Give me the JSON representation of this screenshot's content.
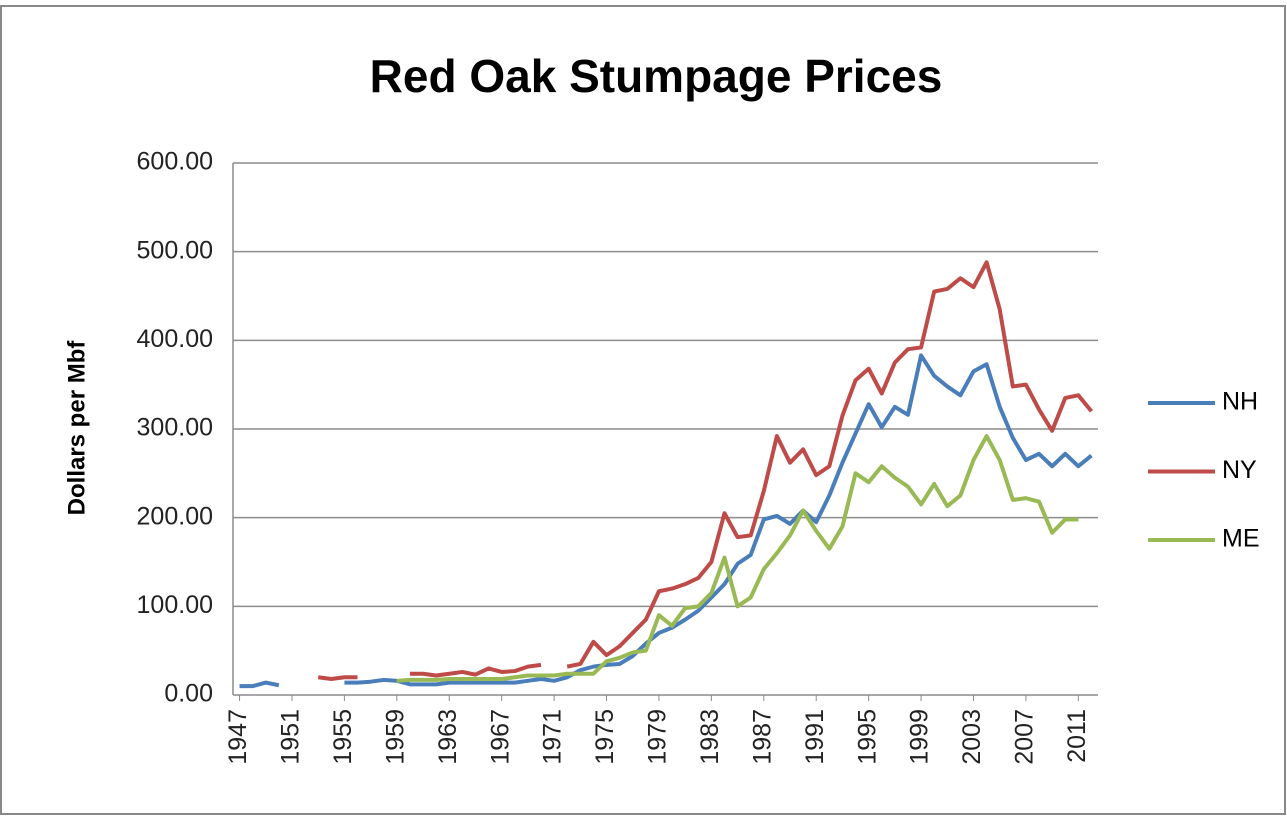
{
  "chart_data": {
    "type": "line",
    "title": "Red Oak Stumpage Prices",
    "ylabel": "Dollars per Mbf",
    "x": [
      1947,
      1948,
      1949,
      1950,
      1951,
      1952,
      1953,
      1954,
      1955,
      1956,
      1957,
      1958,
      1959,
      1960,
      1961,
      1962,
      1963,
      1964,
      1965,
      1966,
      1967,
      1968,
      1969,
      1970,
      1971,
      1972,
      1973,
      1974,
      1975,
      1976,
      1977,
      1978,
      1979,
      1980,
      1981,
      1982,
      1983,
      1984,
      1985,
      1986,
      1987,
      1988,
      1989,
      1990,
      1991,
      1992,
      1993,
      1994,
      1995,
      1996,
      1997,
      1998,
      1999,
      2000,
      2001,
      2002,
      2003,
      2004,
      2005,
      2006,
      2007,
      2008,
      2009,
      2010,
      2011,
      2012
    ],
    "series": [
      {
        "name": "NH",
        "color": "#4a7ebb",
        "values": [
          10,
          10,
          14,
          11,
          null,
          null,
          null,
          null,
          14,
          14,
          15,
          17,
          16,
          12,
          12,
          12,
          14,
          14,
          14,
          14,
          14,
          14,
          16,
          18,
          16,
          20,
          28,
          32,
          34,
          35,
          44,
          58,
          70,
          76,
          85,
          95,
          110,
          125,
          148,
          158,
          198,
          202,
          193,
          208,
          195,
          225,
          262,
          295,
          328,
          302,
          325,
          316,
          383,
          360,
          348,
          338,
          365,
          373,
          325,
          290,
          265,
          272,
          258,
          272,
          258,
          270
        ]
      },
      {
        "name": "NY",
        "color": "#be4b48",
        "values": [
          null,
          null,
          null,
          null,
          null,
          null,
          20,
          18,
          20,
          20,
          null,
          null,
          null,
          24,
          24,
          22,
          24,
          26,
          23,
          30,
          26,
          27,
          32,
          34,
          null,
          32,
          35,
          60,
          45,
          55,
          70,
          85,
          117,
          120,
          125,
          132,
          150,
          205,
          178,
          180,
          230,
          292,
          262,
          277,
          248,
          258,
          315,
          355,
          368,
          340,
          375,
          390,
          392,
          455,
          458,
          470,
          460,
          488,
          435,
          348,
          350,
          322,
          298,
          335,
          338,
          320
        ]
      },
      {
        "name": "ME",
        "color": "#98b954",
        "values": [
          null,
          null,
          null,
          null,
          null,
          null,
          null,
          null,
          null,
          null,
          null,
          null,
          16,
          17,
          17,
          17,
          18,
          18,
          18,
          18,
          18,
          20,
          22,
          22,
          22,
          24,
          24,
          24,
          38,
          42,
          48,
          50,
          90,
          78,
          98,
          100,
          115,
          155,
          100,
          110,
          142,
          160,
          180,
          208,
          185,
          165,
          190,
          250,
          240,
          258,
          245,
          235,
          215,
          238,
          213,
          225,
          265,
          292,
          265,
          220,
          222,
          218,
          183,
          198,
          198,
          null
        ]
      }
    ],
    "xlim": [
      1946.5,
      2012.5
    ],
    "xticks": [
      1947,
      1951,
      1955,
      1959,
      1963,
      1967,
      1971,
      1975,
      1979,
      1983,
      1987,
      1991,
      1995,
      1999,
      2003,
      2007,
      2011
    ],
    "ylim": [
      0,
      600
    ],
    "yticks": [
      {
        "value": 0,
        "label": "0.00"
      },
      {
        "value": 100,
        "label": "100.00"
      },
      {
        "value": 200,
        "label": "200.00"
      },
      {
        "value": 300,
        "label": "300.00"
      },
      {
        "value": 400,
        "label": "400.00"
      },
      {
        "value": 500,
        "label": "500.00"
      },
      {
        "value": 600,
        "label": "600.00"
      }
    ],
    "grid": true,
    "legend": "right"
  }
}
